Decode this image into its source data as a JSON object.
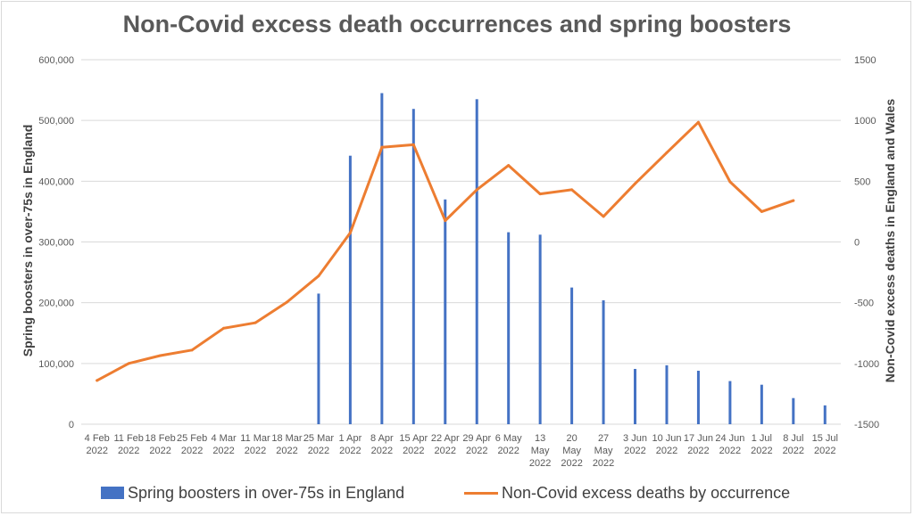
{
  "chart_data": {
    "type": "bar+line",
    "title": "Non-Covid excess death occurrences and spring boosters",
    "categories": [
      [
        "4 Feb",
        "2022"
      ],
      [
        "11 Feb",
        "2022"
      ],
      [
        "18 Feb",
        "2022"
      ],
      [
        "25 Feb",
        "2022"
      ],
      [
        "4 Mar",
        "2022"
      ],
      [
        "11 Mar",
        "2022"
      ],
      [
        "18 Mar",
        "2022"
      ],
      [
        "25 Mar",
        "2022"
      ],
      [
        "1 Apr",
        "2022"
      ],
      [
        "8 Apr",
        "2022"
      ],
      [
        "15 Apr",
        "2022"
      ],
      [
        "22 Apr",
        "2022"
      ],
      [
        "29 Apr",
        "2022"
      ],
      [
        "6 May",
        "2022"
      ],
      [
        "13",
        "May",
        "2022"
      ],
      [
        "20",
        "May",
        "2022"
      ],
      [
        "27",
        "May",
        "2022"
      ],
      [
        "3 Jun",
        "2022"
      ],
      [
        "10 Jun",
        "2022"
      ],
      [
        "17 Jun",
        "2022"
      ],
      [
        "24 Jun",
        "2022"
      ],
      [
        "1 Jul",
        "2022"
      ],
      [
        "8 Jul",
        "2022"
      ],
      [
        "15 Jul",
        "2022"
      ]
    ],
    "y_left": {
      "label": "Spring boosters in over-75s in England",
      "min": 0,
      "max": 600000,
      "ticks": [
        "0",
        "100,000",
        "200,000",
        "300,000",
        "400,000",
        "500,000",
        "600,000"
      ],
      "tick_values": [
        0,
        100000,
        200000,
        300000,
        400000,
        500000,
        600000
      ]
    },
    "y_right": {
      "label": "Non-Covid excess deaths in England and Wales",
      "min": -1500,
      "max": 1500,
      "ticks": [
        "-1500",
        "-1000",
        "-500",
        "0",
        "500",
        "1000",
        "1500"
      ],
      "tick_values": [
        -1500,
        -1000,
        -500,
        0,
        500,
        1000,
        1500
      ]
    },
    "grid": true,
    "legend_position": "bottom",
    "series": [
      {
        "name": "Spring boosters in over-75s in England",
        "type": "bar",
        "axis": "left",
        "color": "#4472c4",
        "values": [
          0,
          0,
          0,
          0,
          0,
          0,
          0,
          215000,
          442000,
          545000,
          519000,
          370000,
          535000,
          316000,
          312000,
          225000,
          204000,
          91000,
          97000,
          88000,
          71000,
          65000,
          43000,
          31000
        ]
      },
      {
        "name": "Non-Covid excess deaths by occurrence",
        "type": "line",
        "axis": "right",
        "color": "#ed7d31",
        "values": [
          -1140,
          -1000,
          -935,
          -890,
          -710,
          -665,
          -495,
          -280,
          75,
          780,
          800,
          175,
          430,
          630,
          395,
          430,
          210,
          480,
          735,
          985,
          495,
          250,
          340,
          null
        ]
      }
    ]
  }
}
